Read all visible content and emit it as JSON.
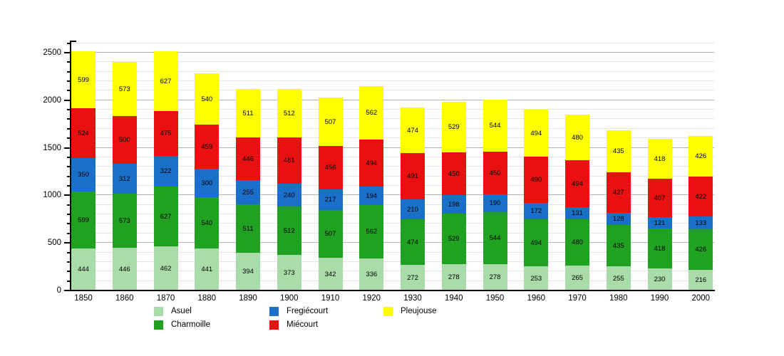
{
  "chart_data": {
    "type": "bar",
    "stacked": true,
    "title": "",
    "xlabel": "",
    "ylabel": "",
    "categories": [
      "1850",
      "1860",
      "1870",
      "1880",
      "1890",
      "1900",
      "1910",
      "1920",
      "1930",
      "1940",
      "1950",
      "1960",
      "1970",
      "1980",
      "1990",
      "2000"
    ],
    "series": [
      {
        "name": "Asuel",
        "color": "#A9DCA9",
        "values": [
          444,
          446,
          462,
          441,
          394,
          373,
          342,
          336,
          272,
          278,
          278,
          253,
          265,
          255,
          230,
          216
        ]
      },
      {
        "name": "Charmoille",
        "color": "#21A121",
        "values": [
          599,
          573,
          627,
          540,
          511,
          512,
          507,
          562,
          474,
          529,
          544,
          494,
          480,
          435,
          418,
          426
        ]
      },
      {
        "name": "Fregiécourt",
        "color": "#1A6FC9",
        "values": [
          350,
          312,
          322,
          300,
          255,
          240,
          217,
          194,
          210,
          198,
          190,
          172,
          131,
          128,
          121,
          133
        ]
      },
      {
        "name": "Miécourt",
        "color": "#E81010",
        "values": [
          524,
          500,
          475,
          459,
          446,
          481,
          456,
          494,
          491,
          450,
          450,
          490,
          494,
          427,
          407,
          422
        ]
      },
      {
        "name": "Pleujouse",
        "color": "#FFFF00",
        "values": [
          599,
          573,
          627,
          540,
          511,
          512,
          507,
          562,
          474,
          529,
          544,
          494,
          480,
          435,
          418,
          426
        ]
      }
    ],
    "y_ticks": [
      0,
      500,
      1000,
      1500,
      2000,
      2500
    ],
    "ylim": [
      0,
      2604
    ],
    "grid": {
      "on": true,
      "minor_step": 100,
      "major_step": 500
    },
    "legend_position": "bottom",
    "legend_layout_columns": [
      [
        0,
        1
      ],
      [
        2,
        3
      ],
      [
        4
      ]
    ],
    "axis_color": "#000000",
    "minor_grid_color": "#e4e4e4",
    "major_grid_color": "#b3b3b3",
    "background_color": "#ffffff"
  }
}
